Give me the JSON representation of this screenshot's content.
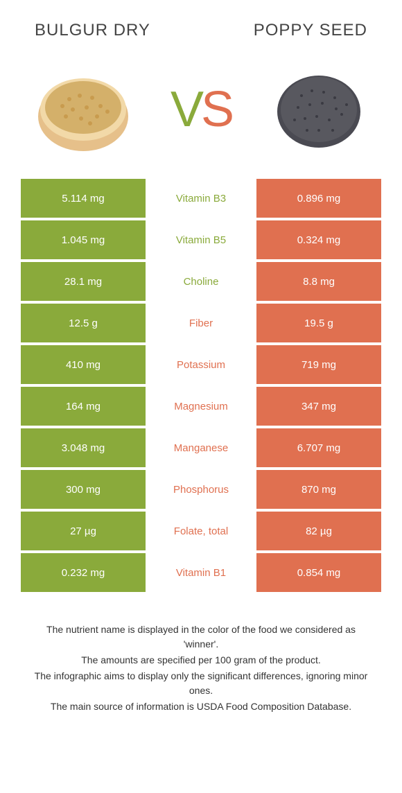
{
  "colors": {
    "green": "#8aaa3b",
    "orange": "#e07050",
    "white": "#ffffff",
    "text": "#333333"
  },
  "header": {
    "left": "BULGUR DRY",
    "right": "POPPY SEED"
  },
  "vs": {
    "v": "V",
    "s": "S"
  },
  "rows": [
    {
      "left": "5.114 mg",
      "label": "Vitamin B3",
      "right": "0.896 mg",
      "winner": "left"
    },
    {
      "left": "1.045 mg",
      "label": "Vitamin B5",
      "right": "0.324 mg",
      "winner": "left"
    },
    {
      "left": "28.1 mg",
      "label": "Choline",
      "right": "8.8 mg",
      "winner": "left"
    },
    {
      "left": "12.5 g",
      "label": "Fiber",
      "right": "19.5 g",
      "winner": "right"
    },
    {
      "left": "410 mg",
      "label": "Potassium",
      "right": "719 mg",
      "winner": "right"
    },
    {
      "left": "164 mg",
      "label": "Magnesium",
      "right": "347 mg",
      "winner": "right"
    },
    {
      "left": "3.048 mg",
      "label": "Manganese",
      "right": "6.707 mg",
      "winner": "right"
    },
    {
      "left": "300 mg",
      "label": "Phosphorus",
      "right": "870 mg",
      "winner": "right"
    },
    {
      "left": "27 µg",
      "label": "Folate, total",
      "right": "82 µg",
      "winner": "right"
    },
    {
      "left": "0.232 mg",
      "label": "Vitamin B1",
      "right": "0.854 mg",
      "winner": "right"
    }
  ],
  "footer": {
    "l1": "The nutrient name is displayed in the color of the food we considered as 'winner'.",
    "l2": "The amounts are specified per 100 gram of the product.",
    "l3": "The infographic aims to display only the significant differences, ignoring minor ones.",
    "l4": "The main source of information is USDA Food Composition Database."
  }
}
